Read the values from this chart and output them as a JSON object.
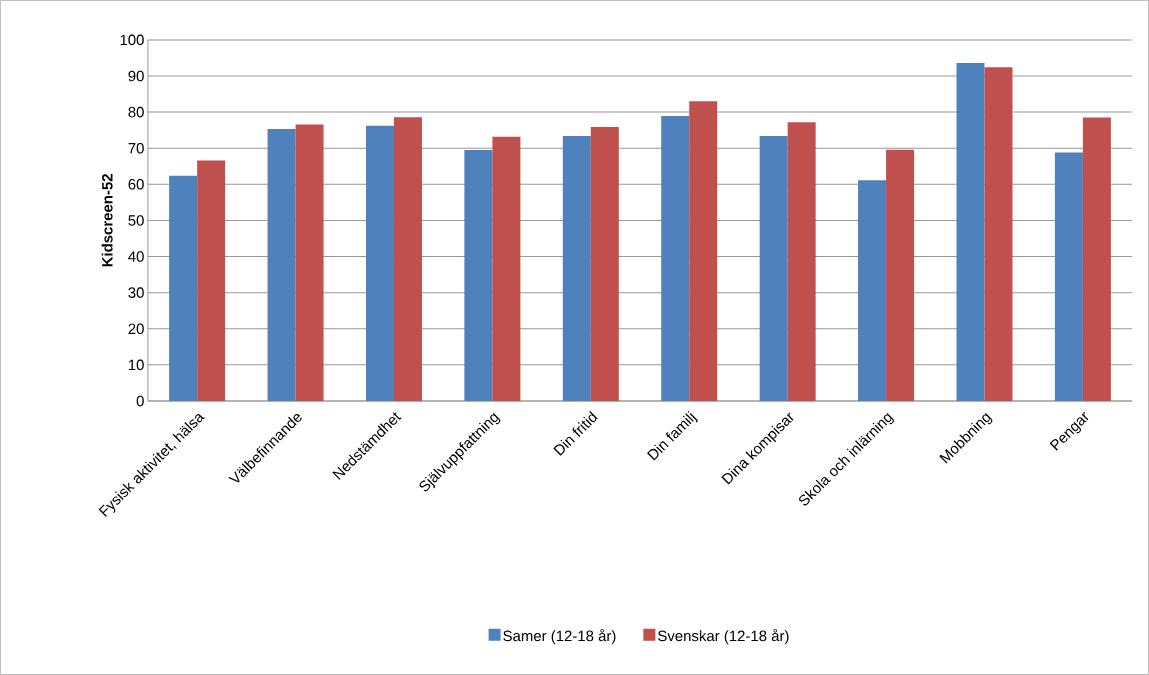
{
  "chart_data": {
    "type": "bar",
    "ylabel": "Kidscreen-52",
    "categories": [
      "Fysisk aktivitet, hälsa",
      "Välbefinnande",
      "Nedstämdhet",
      "Självuppfattning",
      "Din fritid",
      "Din familj",
      "Dina kompisar",
      "Skola och inlärning",
      "Mobbning",
      "Pengar"
    ],
    "series": [
      {
        "name": "Samer (12-18 år)",
        "color": "#4f81bd",
        "values": [
          62.4,
          75.3,
          76.2,
          69.5,
          73.4,
          78.9,
          73.4,
          61.1,
          93.6,
          68.8
        ]
      },
      {
        "name": "Svenskar (12-18 år)",
        "color": "#c0504d",
        "values": [
          66.6,
          76.6,
          78.6,
          73.2,
          75.9,
          83.0,
          77.2,
          69.6,
          92.4,
          78.5
        ]
      }
    ],
    "ylim": [
      0,
      100
    ],
    "yticks": [
      0,
      10,
      20,
      30,
      40,
      50,
      60,
      70,
      80,
      90,
      100
    ],
    "grid": "y",
    "legend": "bottom"
  }
}
